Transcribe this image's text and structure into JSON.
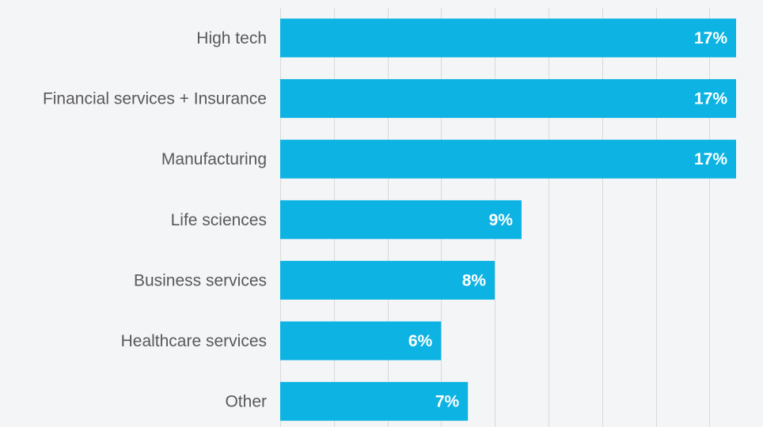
{
  "chart_data": {
    "type": "bar",
    "orientation": "horizontal",
    "categories": [
      "High tech",
      "Financial services + Insurance",
      "Manufacturing",
      "Life sciences",
      "Business services",
      "Healthcare services",
      "Other"
    ],
    "values": [
      17,
      17,
      17,
      9,
      8,
      6,
      7
    ],
    "value_labels": [
      "17%",
      "17%",
      "17%",
      "9%",
      "8%",
      "6%",
      "7%"
    ],
    "unit": "%",
    "xlim": [
      0,
      17
    ],
    "grid": true,
    "bar_color": "#0db3e3",
    "background_color": "#f4f5f7"
  }
}
